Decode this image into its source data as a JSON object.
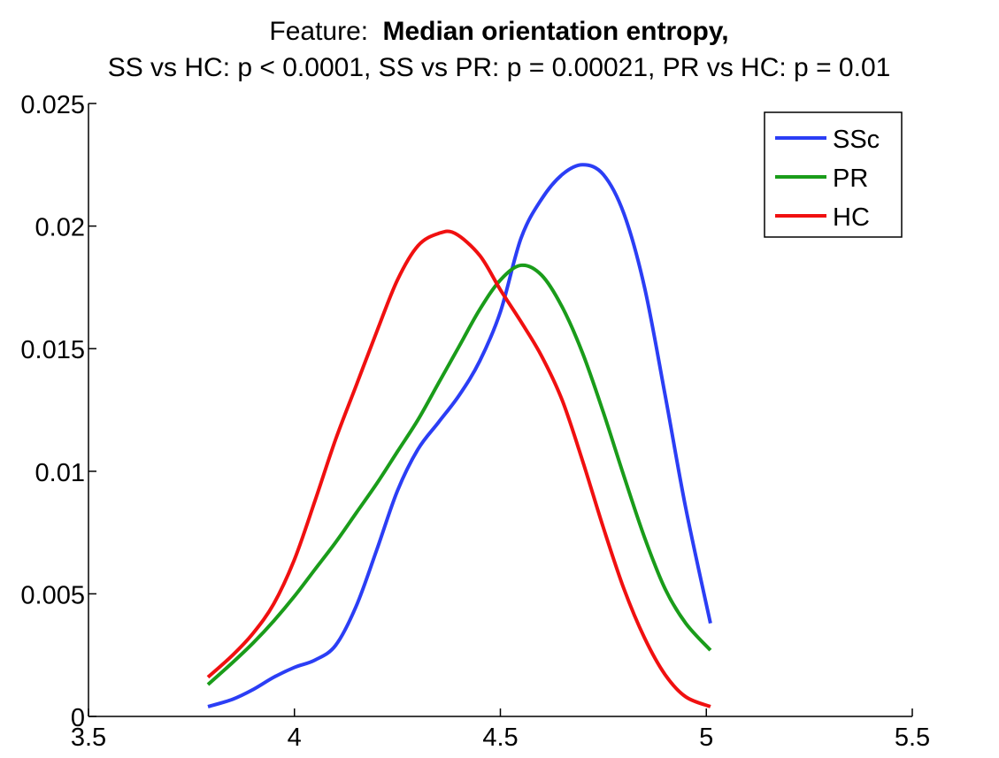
{
  "chart_data": {
    "type": "line",
    "title_prefix": "Feature:",
    "title_bold": "Median orientation entropy,",
    "subtitle": "SS vs HC: p < 0.0001, SS vs PR: p = 0.00021, PR vs HC: p = 0.01",
    "xlim": [
      3.5,
      5.5
    ],
    "ylim": [
      0,
      0.025
    ],
    "xticks": [
      3.5,
      4,
      4.5,
      5,
      5.5
    ],
    "xtick_labels": [
      "3.5",
      "4",
      "4.5",
      "5",
      "5.5"
    ],
    "yticks": [
      0,
      0.005,
      0.01,
      0.015,
      0.02,
      0.025
    ],
    "ytick_labels": [
      "0",
      "0.005",
      "0.01",
      "0.015",
      "0.02",
      "0.025"
    ],
    "grid": false,
    "legend_position": "top-right",
    "series": [
      {
        "name": "SSc",
        "color": "#2b3ef5",
        "x": [
          3.79,
          3.85,
          3.9,
          3.95,
          4.0,
          4.05,
          4.1,
          4.15,
          4.2,
          4.25,
          4.3,
          4.35,
          4.4,
          4.45,
          4.5,
          4.55,
          4.6,
          4.65,
          4.7,
          4.75,
          4.8,
          4.85,
          4.9,
          4.95,
          5.01
        ],
        "y": [
          0.0004,
          0.0007,
          0.0011,
          0.0016,
          0.002,
          0.0023,
          0.0029,
          0.0045,
          0.0068,
          0.0092,
          0.0109,
          0.012,
          0.0131,
          0.0145,
          0.0165,
          0.0195,
          0.0211,
          0.0221,
          0.0225,
          0.0221,
          0.0205,
          0.0175,
          0.0131,
          0.0085,
          0.0038
        ]
      },
      {
        "name": "PR",
        "color": "#1a9c1a",
        "x": [
          3.79,
          3.85,
          3.9,
          3.95,
          4.0,
          4.05,
          4.1,
          4.15,
          4.2,
          4.25,
          4.3,
          4.35,
          4.4,
          4.45,
          4.5,
          4.55,
          4.6,
          4.65,
          4.7,
          4.75,
          4.8,
          4.85,
          4.9,
          4.95,
          5.01
        ],
        "y": [
          0.0013,
          0.0022,
          0.003,
          0.0039,
          0.0049,
          0.006,
          0.0071,
          0.0083,
          0.0095,
          0.0108,
          0.0121,
          0.0136,
          0.0151,
          0.0166,
          0.0178,
          0.0184,
          0.018,
          0.0167,
          0.0148,
          0.0124,
          0.0098,
          0.0073,
          0.0052,
          0.0038,
          0.0027
        ]
      },
      {
        "name": "HC",
        "color": "#f01010",
        "x": [
          3.79,
          3.85,
          3.9,
          3.95,
          4.0,
          4.05,
          4.1,
          4.15,
          4.2,
          4.25,
          4.3,
          4.35,
          4.39,
          4.45,
          4.5,
          4.55,
          4.6,
          4.65,
          4.7,
          4.75,
          4.8,
          4.85,
          4.9,
          4.95,
          5.01
        ],
        "y": [
          0.0016,
          0.0025,
          0.0034,
          0.0046,
          0.0064,
          0.0088,
          0.0113,
          0.0135,
          0.0157,
          0.0178,
          0.0192,
          0.0197,
          0.0197,
          0.0188,
          0.0174,
          0.0161,
          0.0147,
          0.0129,
          0.0104,
          0.0077,
          0.0052,
          0.0032,
          0.0017,
          0.0008,
          0.0004
        ]
      }
    ]
  }
}
